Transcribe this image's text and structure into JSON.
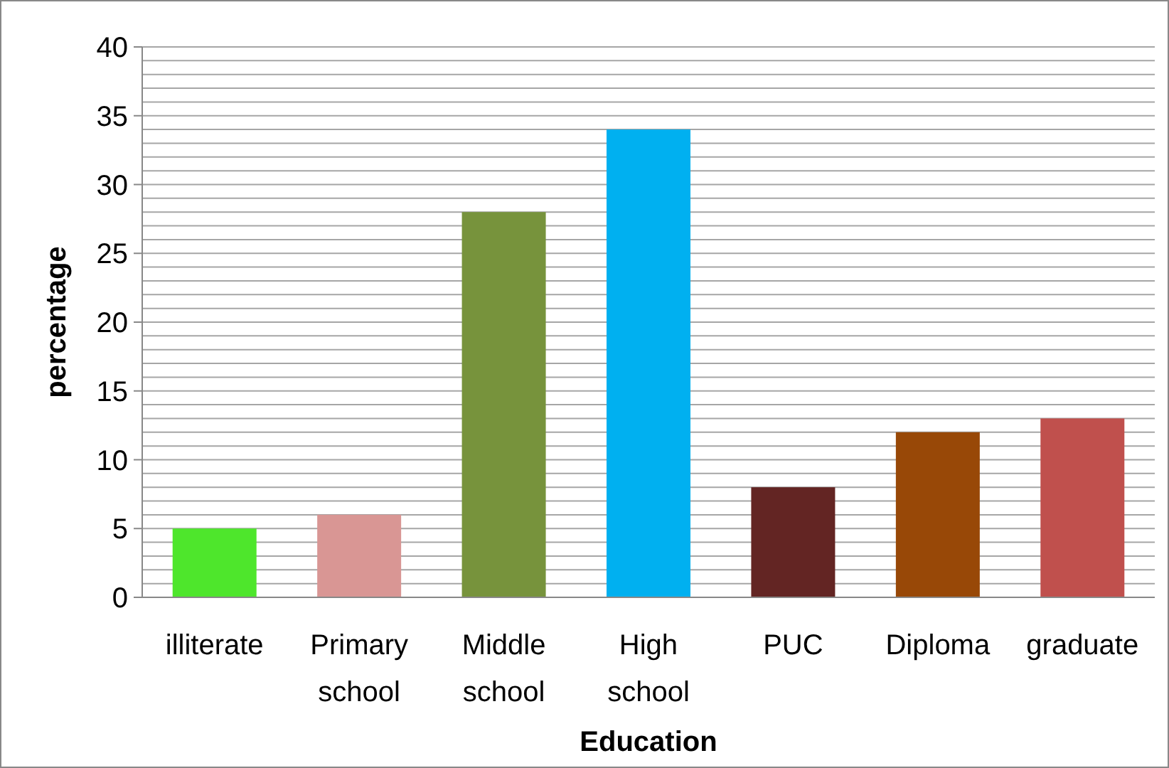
{
  "chart_data": {
    "type": "bar",
    "xlabel": "Education",
    "ylabel": "percentage",
    "categories": [
      "illiterate",
      "Primary school",
      "Middle school",
      "High school",
      "PUC",
      "Diploma",
      "graduate"
    ],
    "values": [
      5,
      6,
      28,
      34,
      8,
      12,
      13
    ],
    "colors": [
      "#4ee62c",
      "#d99694",
      "#77933c",
      "#00b0f0",
      "#632523",
      "#984807",
      "#c0504d"
    ],
    "ylim": [
      0,
      40
    ],
    "yticks": [
      0,
      {
        "value": 1,
        "label": null
      },
      {
        "value": 2,
        "label": null
      },
      {
        "value": 3,
        "label": null
      },
      {
        "value": 4,
        "label": null
      },
      5,
      {
        "value": 6,
        "label": null
      },
      {
        "value": 7,
        "label": null
      },
      {
        "value": 8,
        "label": null
      },
      {
        "value": 9,
        "label": null
      },
      10,
      {
        "value": 11,
        "label": null
      },
      {
        "value": 12,
        "label": null
      },
      {
        "value": 13,
        "label": null
      },
      {
        "value": 14,
        "label": null
      },
      15,
      {
        "value": 16,
        "label": null
      },
      {
        "value": 17,
        "label": null
      },
      {
        "value": 18,
        "label": null
      },
      {
        "value": 19,
        "label": null
      },
      20,
      {
        "value": 21,
        "label": null
      },
      {
        "value": 22,
        "label": null
      },
      {
        "value": 23,
        "label": null
      },
      {
        "value": 24,
        "label": null
      },
      25,
      {
        "value": 26,
        "label": null
      },
      {
        "value": 27,
        "label": null
      },
      {
        "value": 28,
        "label": null
      },
      {
        "value": 29,
        "label": null
      },
      30,
      {
        "value": 31,
        "label": null
      },
      {
        "value": 32,
        "label": null
      },
      {
        "value": 33,
        "label": null
      },
      {
        "value": 34,
        "label": null
      },
      35,
      {
        "value": 36,
        "label": null
      },
      {
        "value": 37,
        "label": null
      },
      {
        "value": 38,
        "label": null
      },
      {
        "value": 39,
        "label": null
      },
      40
    ],
    "grid": "y"
  }
}
